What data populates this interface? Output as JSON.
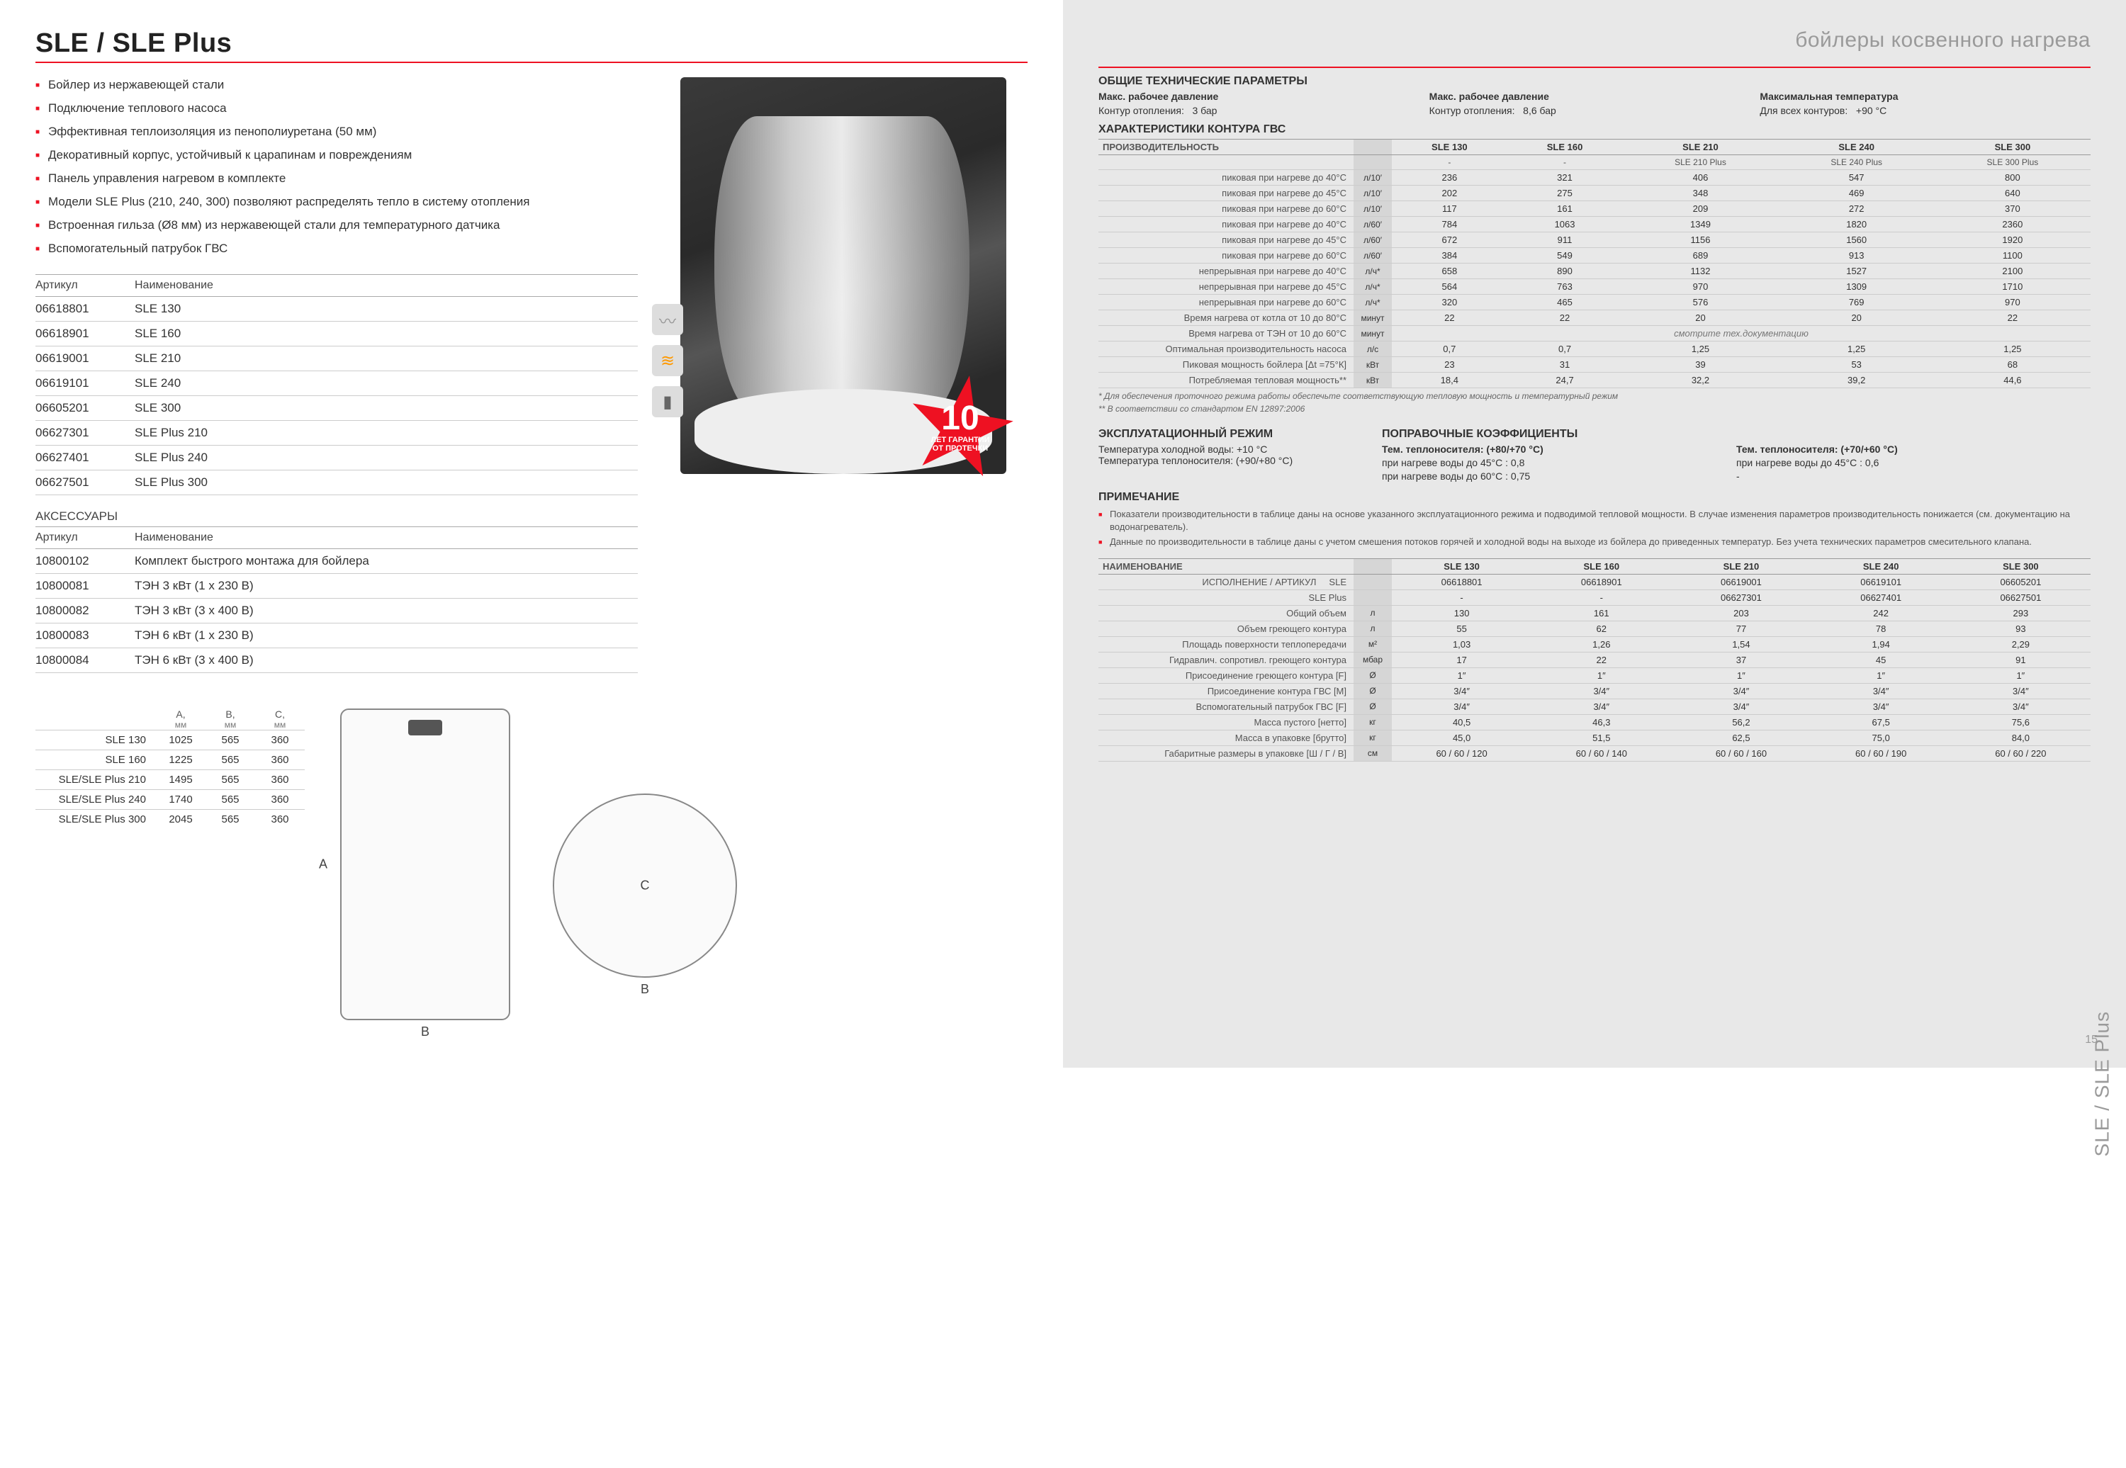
{
  "colors": {
    "accent": "#e12",
    "mutedText": "#9a9a9a",
    "bgRight": "#e8e8e8",
    "unitCell": "#d6d6d6",
    "border": "#ccc"
  },
  "left": {
    "title": "SLE / SLE Plus",
    "features": [
      "Бойлер из нержавеющей стали",
      "Подключение теплового насоса",
      "Эффективная теплоизоляция из пенополиуретана (50 мм)",
      "Декоративный корпус, устойчивый к царапинам и повреждениям",
      "Панель управления нагревом в комплекте",
      "Модели SLE Plus (210, 240, 300) позволяют распределять тепло в систему отопления",
      "Встроенная гильза (Ø8 мм) из нержавеющей стали для температурного датчика",
      "Вспомогательный патрубок ГВС"
    ],
    "articlesHeader": {
      "c1": "Артикул",
      "c2": "Наименование"
    },
    "articles": [
      {
        "code": "06618801",
        "name": "SLE 130"
      },
      {
        "code": "06618901",
        "name": "SLE 160"
      },
      {
        "code": "06619001",
        "name": "SLE 210"
      },
      {
        "code": "06619101",
        "name": "SLE 240"
      },
      {
        "code": "06605201",
        "name": "SLE 300"
      },
      {
        "code": "06627301",
        "name": "SLE Plus 210"
      },
      {
        "code": "06627401",
        "name": "SLE Plus 240"
      },
      {
        "code": "06627501",
        "name": "SLE Plus 300"
      }
    ],
    "accessoriesTitle": "АКСЕССУАРЫ",
    "accessories": [
      {
        "code": "10800102",
        "name": "Комплект быстрого монтажа для бойлера"
      },
      {
        "code": "10800081",
        "name": "ТЭН 3 кВт (1 х 230 В)"
      },
      {
        "code": "10800082",
        "name": "ТЭН 3 кВт (3 х 400 В)"
      },
      {
        "code": "10800083",
        "name": "ТЭН 6 кВт (1 х 230 В)"
      },
      {
        "code": "10800084",
        "name": "ТЭН 6 кВт (3 х 400 В)"
      }
    ],
    "dimsHeader": {
      "A": "A,",
      "B": "B,",
      "C": "C,",
      "unit": "мм"
    },
    "dims": [
      {
        "m": "SLE 130",
        "A": "1025",
        "B": "565",
        "C": "360"
      },
      {
        "m": "SLE 160",
        "A": "1225",
        "B": "565",
        "C": "360"
      },
      {
        "m": "SLE/SLE Plus 210",
        "A": "1495",
        "B": "565",
        "C": "360"
      },
      {
        "m": "SLE/SLE Plus 240",
        "A": "1740",
        "B": "565",
        "C": "360"
      },
      {
        "m": "SLE/SLE Plus 300",
        "A": "2045",
        "B": "565",
        "C": "360"
      }
    ],
    "dwgLabels": {
      "A": "A",
      "B": "B",
      "C": "C"
    },
    "badge": {
      "num": "10",
      "txt1": "ЛЕТ ГАРАНТИИ",
      "txt2": "ОТ ПРОТЕЧКИ",
      "до": "ДО"
    }
  },
  "right": {
    "catTitle": "бойлеры косвенного нагрева",
    "genTitle": "ОБЩИЕ ТЕХНИЧЕСКИЕ ПАРАМЕТРЫ",
    "genParams": [
      {
        "h": "Макс. рабочее давление",
        "l": "Контур отопления:",
        "v": "3 бар"
      },
      {
        "h": "Макс. рабочее давление",
        "l": "Контур отопления:",
        "v": "8,6 бар"
      },
      {
        "h": "Максимальная температура",
        "l": "Для всех контуров:",
        "v": "+90 °С"
      }
    ],
    "charTitle": "ХАРАКТЕРИСТИКИ КОНТУРА ГВС",
    "perfHead": "ПРОИЗВОДИТЕЛЬНОСТЬ",
    "models": [
      "SLE 130",
      "SLE 160",
      "SLE 210",
      "SLE 240",
      "SLE 300"
    ],
    "modelsPlus": [
      "-",
      "-",
      "SLE 210 Plus",
      "SLE 240 Plus",
      "SLE 300 Plus"
    ],
    "perfRows": [
      {
        "l": "пиковая при нагреве до 40°С",
        "u": "л/10′",
        "v": [
          "236",
          "321",
          "406",
          "547",
          "800"
        ]
      },
      {
        "l": "пиковая при нагреве до 45°С",
        "u": "л/10′",
        "v": [
          "202",
          "275",
          "348",
          "469",
          "640"
        ]
      },
      {
        "l": "пиковая при нагреве до 60°С",
        "u": "л/10′",
        "v": [
          "117",
          "161",
          "209",
          "272",
          "370"
        ]
      },
      {
        "l": "пиковая при нагреве до 40°С",
        "u": "л/60′",
        "v": [
          "784",
          "1063",
          "1349",
          "1820",
          "2360"
        ]
      },
      {
        "l": "пиковая при нагреве до 45°С",
        "u": "л/60′",
        "v": [
          "672",
          "911",
          "1156",
          "1560",
          "1920"
        ]
      },
      {
        "l": "пиковая при нагреве до 60°С",
        "u": "л/60′",
        "v": [
          "384",
          "549",
          "689",
          "913",
          "1100"
        ]
      },
      {
        "l": "непрерывная при нагреве до 40°С",
        "u": "л/ч*",
        "v": [
          "658",
          "890",
          "1132",
          "1527",
          "2100"
        ]
      },
      {
        "l": "непрерывная при нагреве до 45°С",
        "u": "л/ч*",
        "v": [
          "564",
          "763",
          "970",
          "1309",
          "1710"
        ]
      },
      {
        "l": "непрерывная при нагреве до 60°С",
        "u": "л/ч*",
        "v": [
          "320",
          "465",
          "576",
          "769",
          "970"
        ]
      }
    ],
    "extraRows": [
      {
        "l": "Время нагрева от котла от 10 до 80°С",
        "u": "минут",
        "v": [
          "22",
          "22",
          "20",
          "20",
          "22"
        ]
      },
      {
        "l": "Время нагрева от ТЭН от 10 до 60°С",
        "u": "минут",
        "v": [
          "",
          "",
          "смотрите тех.документацию",
          "",
          ""
        ],
        "span": true,
        "spanText": "смотрите тех.документацию"
      },
      {
        "l": "Оптимальная производительность насоса",
        "u": "л/с",
        "v": [
          "0,7",
          "0,7",
          "1,25",
          "1,25",
          "1,25"
        ]
      },
      {
        "l": "Пиковая мощность бойлера [Δt =75°К]",
        "u": "кВт",
        "v": [
          "23",
          "31",
          "39",
          "53",
          "68"
        ]
      },
      {
        "l": "Потребляемая тепловая мощность**",
        "u": "кВт",
        "v": [
          "18,4",
          "24,7",
          "32,2",
          "39,2",
          "44,6"
        ]
      }
    ],
    "footnote1": "* Для обеспечения проточного режима работы обеспечьте соответствующую тепловую мощность и температурный режим",
    "footnote2": "** В соответствии со стандартом EN 12897:2006",
    "opTitle": "ЭКСПЛУАТАЦИОННЫЙ РЕЖИМ",
    "opRows": [
      {
        "l": "Температура холодной воды: +10 °С"
      },
      {
        "l": "Температура теплоносителя: (+90/+80 °С)"
      }
    ],
    "coefTitle": "ПОПРАВОЧНЫЕ КОЭФФИЦИЕНТЫ",
    "coefCols": [
      {
        "h": "Тем. теплоносителя: (+80/+70 °С)",
        "r1": "при нагреве воды до 45°С : 0,8",
        "r2": "при нагреве воды до 60°С : 0,75"
      },
      {
        "h": "Тем. теплоносителя: (+70/+60 °С)",
        "r1": "при нагреве воды до 45°С : 0,6",
        "r2": "-"
      }
    ],
    "noteTitle": "ПРИМЕЧАНИЕ",
    "notes": [
      "Показатели производительности в таблице даны на основе указанного эксплуатационного режима и подводимой тепловой мощности. В случае изменения параметров производительность понижается (см. документацию на водонагреватель).",
      "Данные по производительности в таблице даны с учетом смешения потоков горячей и холодной воды на выходе из бойлера до приведенных температур. Без учета технических параметров смесительного клапана."
    ],
    "specTitle": "НАИМЕНОВАНИЕ",
    "specExecLabel": "ИСПОЛНЕНИЕ / АРТИКУЛ",
    "specExecSle": "SLE",
    "specExecPlus": "SLE Plus",
    "specCodesSle": [
      "06618801",
      "06618901",
      "06619001",
      "06619101",
      "06605201"
    ],
    "specCodesPlus": [
      "-",
      "-",
      "06627301",
      "06627401",
      "06627501"
    ],
    "specRows": [
      {
        "l": "Общий объем",
        "u": "л",
        "v": [
          "130",
          "161",
          "203",
          "242",
          "293"
        ]
      },
      {
        "l": "Объем греющего контура",
        "u": "л",
        "v": [
          "55",
          "62",
          "77",
          "78",
          "93"
        ]
      },
      {
        "l": "Площадь поверхности теплопередачи",
        "u": "м²",
        "v": [
          "1,03",
          "1,26",
          "1,54",
          "1,94",
          "2,29"
        ]
      },
      {
        "l": "Гидравлич. сопротивл. греющего контура",
        "u": "мбар",
        "v": [
          "17",
          "22",
          "37",
          "45",
          "91"
        ]
      },
      {
        "l": "Присоединение греющего контура [F]",
        "u": "Ø",
        "v": [
          "1″",
          "1″",
          "1″",
          "1″",
          "1″"
        ]
      },
      {
        "l": "Присоединение контура ГВС [M]",
        "u": "Ø",
        "v": [
          "3/4″",
          "3/4″",
          "3/4″",
          "3/4″",
          "3/4″"
        ]
      },
      {
        "l": "Вспомогательный патрубок ГВС [F]",
        "u": "Ø",
        "v": [
          "3/4″",
          "3/4″",
          "3/4″",
          "3/4″",
          "3/4″"
        ]
      },
      {
        "l": "Масса пустого [нетто]",
        "u": "кг",
        "v": [
          "40,5",
          "46,3",
          "56,2",
          "67,5",
          "75,6"
        ]
      },
      {
        "l": "Масса в упаковке [брутто]",
        "u": "кг",
        "v": [
          "45,0",
          "51,5",
          "62,5",
          "75,0",
          "84,0"
        ]
      },
      {
        "l": "Габаритные размеры в упаковке [Ш / Г / В]",
        "u": "см",
        "v": [
          "60 / 60 / 120",
          "60 / 60 / 140",
          "60 / 60 / 160",
          "60 / 60 / 190",
          "60 / 60 / 220"
        ]
      }
    ],
    "sideLabel": "SLE / SLE Plus",
    "pageNum": "15"
  }
}
